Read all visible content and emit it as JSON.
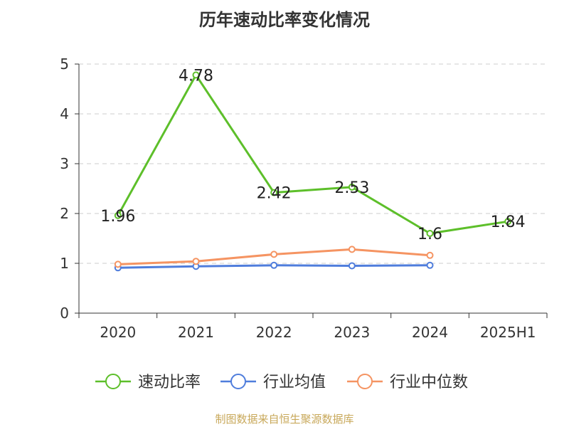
{
  "chart_data": {
    "type": "line",
    "title": "历年速动比率变化情况",
    "categories": [
      "2020",
      "2021",
      "2022",
      "2023",
      "2024",
      "2025H1"
    ],
    "ylim": [
      0,
      5
    ],
    "yticks": [
      "0",
      "1",
      "2",
      "3",
      "4",
      "5"
    ],
    "grid": true,
    "legend_position": "bottom",
    "series": [
      {
        "name": "速动比率",
        "color": "#5dbf2a",
        "values": [
          1.96,
          4.78,
          2.42,
          2.53,
          1.6,
          1.84
        ],
        "labels": [
          "1.96",
          "4.78",
          "2.42",
          "2.53",
          "1.6",
          "1.84"
        ]
      },
      {
        "name": "行业均值",
        "color": "#4f7ddc",
        "values": [
          0.91,
          0.94,
          0.96,
          0.95,
          0.96,
          null
        ]
      },
      {
        "name": "行业中位数",
        "color": "#f59462",
        "values": [
          0.98,
          1.04,
          1.18,
          1.28,
          1.16,
          null
        ]
      }
    ]
  },
  "source_text": "制图数据来自恒生聚源数据库"
}
